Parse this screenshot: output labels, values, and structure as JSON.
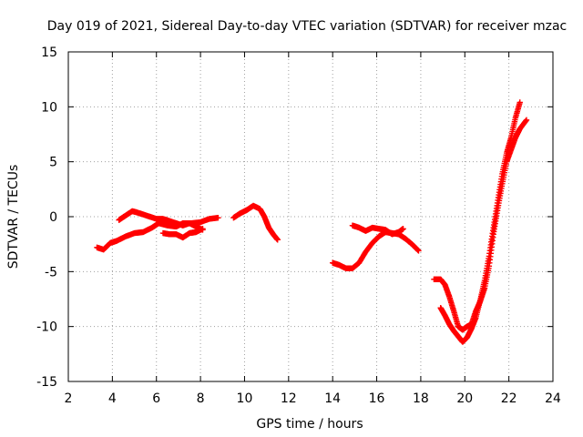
{
  "chart_data": {
    "type": "scatter",
    "title": "Day 019 of 2021, Sidereal Day-to-day VTEC variation (SDTVAR) for receiver mzac",
    "xlabel": "GPS time / hours",
    "ylabel": "SDTVAR / TECUs",
    "xlim": [
      2,
      24
    ],
    "ylim": [
      -15,
      15
    ],
    "xticks": [
      2,
      4,
      6,
      8,
      10,
      12,
      14,
      16,
      18,
      20,
      22,
      24
    ],
    "yticks": [
      -15,
      -10,
      -5,
      0,
      5,
      10,
      15
    ],
    "grid": true,
    "marker": "+",
    "color": "#ff0000",
    "series": [
      {
        "name": "seg1",
        "x": [
          3.3,
          3.6,
          3.9,
          4.2,
          4.6,
          5.0,
          5.4,
          5.8,
          6.1,
          6.5,
          6.9,
          7.2,
          7.6,
          8.0,
          8.4,
          8.8
        ],
        "y": [
          -2.8,
          -3.0,
          -2.4,
          -2.2,
          -1.8,
          -1.5,
          -1.4,
          -1.0,
          -0.6,
          -0.8,
          -0.9,
          -0.6,
          -0.6,
          -0.5,
          -0.2,
          -0.1
        ]
      },
      {
        "name": "seg2",
        "x": [
          4.3,
          4.6,
          4.9,
          5.1,
          5.4,
          5.7,
          6.0,
          6.3,
          6.6,
          6.9,
          7.2,
          7.5,
          7.8,
          8.1
        ],
        "y": [
          -0.3,
          0.1,
          0.5,
          0.4,
          0.2,
          0.0,
          -0.2,
          -0.2,
          -0.4,
          -0.6,
          -0.8,
          -0.6,
          -0.9,
          -1.2
        ]
      },
      {
        "name": "seg3",
        "x": [
          6.3,
          6.6,
          6.9,
          7.2,
          7.5,
          7.8,
          8.1
        ],
        "y": [
          -1.5,
          -1.6,
          -1.6,
          -1.9,
          -1.5,
          -1.4,
          -1.1
        ]
      },
      {
        "name": "seg4",
        "x": [
          9.5,
          9.8,
          10.1,
          10.4,
          10.7,
          10.9,
          11.1,
          11.3,
          11.5
        ],
        "y": [
          -0.1,
          0.3,
          0.6,
          1.0,
          0.7,
          0.0,
          -1.0,
          -1.6,
          -2.1
        ]
      },
      {
        "name": "seg5",
        "x": [
          14.0,
          14.3,
          14.6,
          14.9,
          15.2,
          15.5,
          15.8,
          16.1,
          16.4,
          16.7,
          17.0,
          17.3,
          17.6,
          17.9
        ],
        "y": [
          -4.2,
          -4.4,
          -4.7,
          -4.7,
          -4.2,
          -3.2,
          -2.4,
          -1.8,
          -1.4,
          -1.5,
          -1.6,
          -2.0,
          -2.5,
          -3.1
        ]
      },
      {
        "name": "seg6",
        "x": [
          14.9,
          15.2,
          15.5,
          15.8,
          16.1,
          16.4,
          16.7,
          17.0,
          17.2
        ],
        "y": [
          -0.8,
          -1.0,
          -1.3,
          -1.0,
          -1.1,
          -1.2,
          -1.6,
          -1.4,
          -1.1
        ]
      },
      {
        "name": "seg7",
        "x": [
          18.6,
          18.9,
          19.1,
          19.3,
          19.5,
          19.7,
          19.9,
          20.1,
          20.3,
          20.5,
          20.7,
          20.9,
          21.1,
          21.3,
          21.5,
          21.7,
          21.9,
          22.1,
          22.3,
          22.5,
          22.8
        ],
        "y": [
          -5.7,
          -5.7,
          -6.2,
          -7.3,
          -8.6,
          -10.0,
          -10.3,
          -10.0,
          -9.8,
          -8.6,
          -7.7,
          -6.5,
          -4.5,
          -1.6,
          0.8,
          3.0,
          5.0,
          6.1,
          7.2,
          8.0,
          8.8
        ]
      },
      {
        "name": "seg8",
        "x": [
          18.9,
          19.1,
          19.3,
          19.5,
          19.7,
          19.9,
          20.1,
          20.3,
          20.5,
          20.7,
          20.9,
          21.1,
          21.3,
          21.5,
          21.7,
          21.9,
          22.1,
          22.3,
          22.5
        ],
        "y": [
          -8.3,
          -9.0,
          -9.8,
          -10.4,
          -10.9,
          -11.4,
          -11.0,
          -10.2,
          -9.2,
          -7.6,
          -5.8,
          -3.6,
          -1.0,
          1.5,
          3.9,
          5.8,
          7.2,
          9.0,
          10.4
        ]
      }
    ]
  }
}
